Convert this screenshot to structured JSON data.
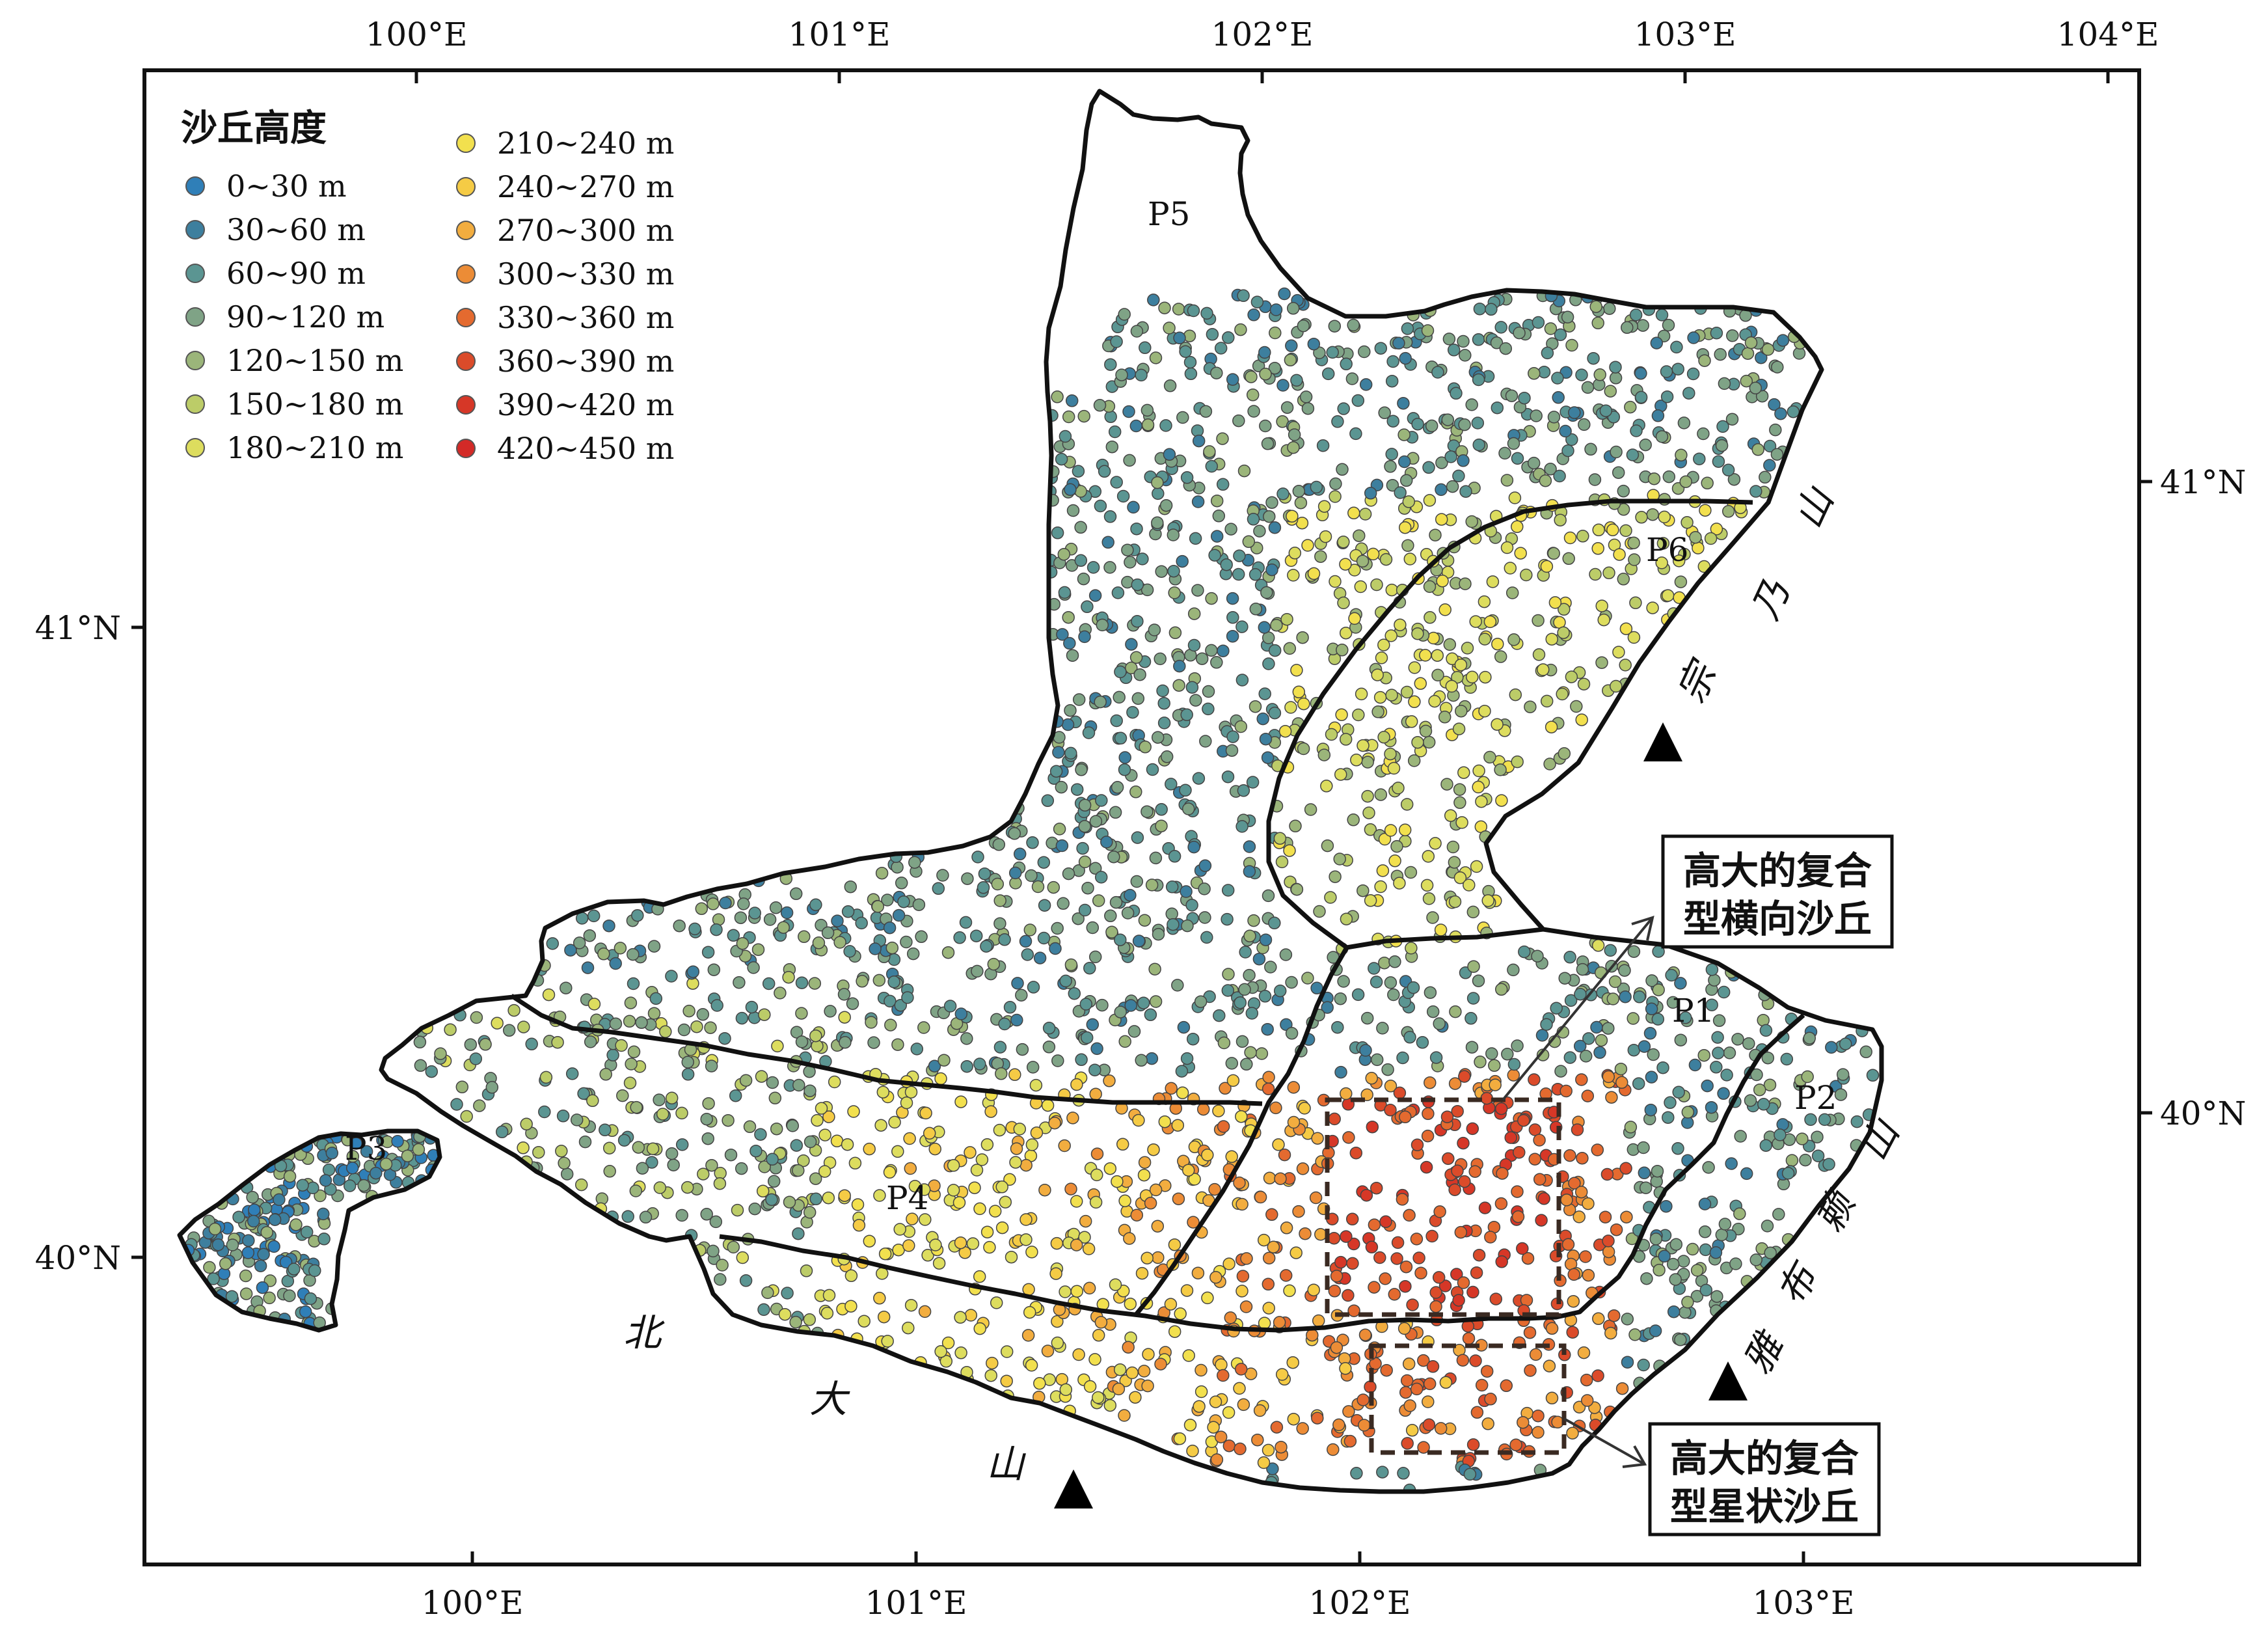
{
  "axes": {
    "top_lon_ticks": [
      "100°E",
      "101°E",
      "102°E",
      "103°E",
      "104°E"
    ],
    "bottom_lon_ticks": [
      "100°E",
      "101°E",
      "102°E",
      "103°E"
    ],
    "left_lat_ticks": [
      "41°N",
      "40°N"
    ],
    "right_lat_ticks": [
      "41°N",
      "40°N"
    ]
  },
  "legend": {
    "title": "沙丘高度",
    "items": [
      {
        "label": "0~30 m",
        "color": "#2f7fb8"
      },
      {
        "label": "30~60 m",
        "color": "#3d7f9e"
      },
      {
        "label": "60~90 m",
        "color": "#5b9592"
      },
      {
        "label": "90~120 m",
        "color": "#7fa386"
      },
      {
        "label": "120~150 m",
        "color": "#9bb57a"
      },
      {
        "label": "150~180 m",
        "color": "#bccc68"
      },
      {
        "label": "180~210 m",
        "color": "#dddd5e"
      },
      {
        "label": "210~240 m",
        "color": "#f2e04e"
      },
      {
        "label": "240~270 m",
        "color": "#f5cb45"
      },
      {
        "label": "270~300 m",
        "color": "#f2ad3f"
      },
      {
        "label": "300~330 m",
        "color": "#ec8c36"
      },
      {
        "label": "330~360 m",
        "color": "#e46a2f"
      },
      {
        "label": "360~390 m",
        "color": "#db4b2a"
      },
      {
        "label": "390~420 m",
        "color": "#d63727"
      },
      {
        "label": "420~450 m",
        "color": "#d32a27"
      }
    ]
  },
  "regions": [
    "P1",
    "P2",
    "P3",
    "P4",
    "P5",
    "P6"
  ],
  "mountains": {
    "zongnai": [
      "宗",
      "乃",
      "山"
    ],
    "yabulai": [
      "雅",
      "布",
      "赖",
      "山"
    ],
    "beida": [
      "北",
      "大",
      "山"
    ]
  },
  "annotations": {
    "transverse": [
      "高大的复合",
      "型横向沙丘"
    ],
    "star": [
      "高大的复合",
      "型星状沙丘"
    ]
  }
}
